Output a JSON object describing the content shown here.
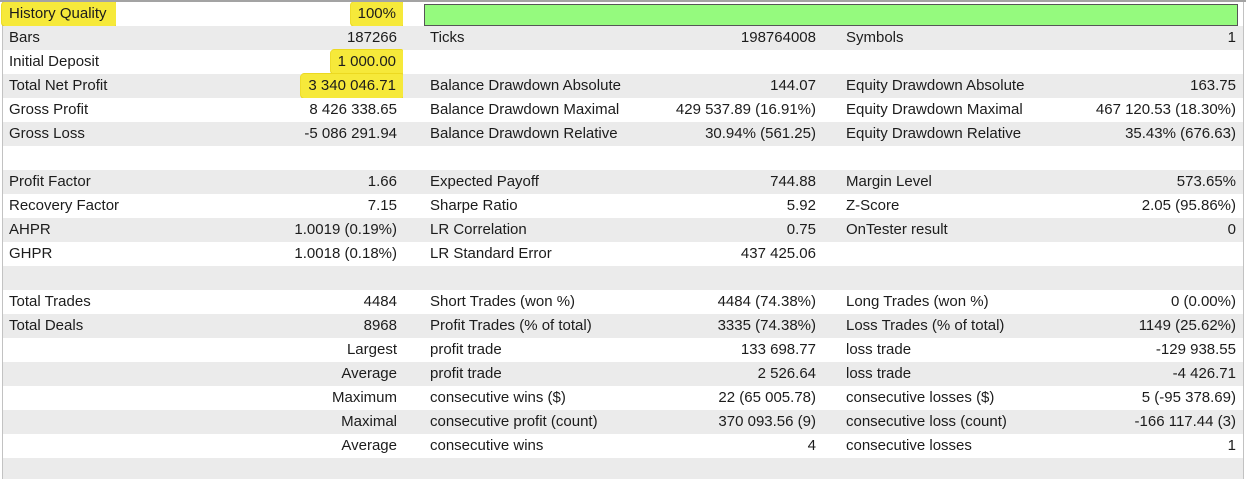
{
  "report": {
    "title": "Strategy Tester Backtest Report",
    "colors": {
      "row_shade": "#ebebeb",
      "highlight_yellow": "#f6e93a",
      "progress_fill": "#95fa7e",
      "progress_border": "#565656",
      "top_border": "#a3a3a3",
      "text": "#1c1c1c"
    },
    "progress": {
      "label": "History Quality",
      "value": "100%"
    },
    "rows": [
      {
        "c1l": "History Quality",
        "c1v": "100%",
        "hl": [
          "c1l",
          "c1v"
        ],
        "progress": true,
        "shade": false
      },
      {
        "c1l": "Bars",
        "c1v": "187266",
        "c2l": "Ticks",
        "c2v": "198764008",
        "c3l": "Symbols",
        "c3v": "1",
        "shade": true
      },
      {
        "c1l": "Initial Deposit",
        "c1v": "1 000.00",
        "hl": [
          "c1v"
        ],
        "shade": false
      },
      {
        "c1l": "Total Net Profit",
        "c1v": "3 340 046.71",
        "hl": [
          "c1v"
        ],
        "c2l": "Balance Drawdown Absolute",
        "c2v": "144.07",
        "c3l": "Equity Drawdown Absolute",
        "c3v": "163.75",
        "shade": true
      },
      {
        "c1l": "Gross Profit",
        "c1v": "8 426 338.65",
        "c2l": "Balance Drawdown Maximal",
        "c2v": "429 537.89 (16.91%)",
        "c3l": "Equity Drawdown Maximal",
        "c3v": "467 120.53 (18.30%)",
        "shade": false
      },
      {
        "c1l": "Gross Loss",
        "c1v": "-5 086 291.94",
        "c2l": "Balance Drawdown Relative",
        "c2v": "30.94% (561.25)",
        "c3l": "Equity Drawdown Relative",
        "c3v": "35.43% (676.63)",
        "shade": true
      },
      {
        "empty": true,
        "shade": false
      },
      {
        "c1l": "Profit Factor",
        "c1v": "1.66",
        "c2l": "Expected Payoff",
        "c2v": "744.88",
        "c3l": "Margin Level",
        "c3v": "573.65%",
        "shade": true
      },
      {
        "c1l": "Recovery Factor",
        "c1v": "7.15",
        "c2l": "Sharpe Ratio",
        "c2v": "5.92",
        "c3l": "Z-Score",
        "c3v": "2.05 (95.86%)",
        "shade": false
      },
      {
        "c1l": "AHPR",
        "c1v": "1.0019 (0.19%)",
        "c2l": "LR Correlation",
        "c2v": "0.75",
        "c3l": "OnTester result",
        "c3v": "0",
        "shade": true
      },
      {
        "c1l": "GHPR",
        "c1v": "1.0018 (0.18%)",
        "c2l": "LR Standard Error",
        "c2v": "437 425.06",
        "shade": false
      },
      {
        "empty": true,
        "shade": true
      },
      {
        "c1l": "Total Trades",
        "c1v": "4484",
        "c2l": "Short Trades (won %)",
        "c2v": "4484 (74.38%)",
        "c3l": "Long Trades (won %)",
        "c3v": "0 (0.00%)",
        "shade": false
      },
      {
        "c1l": "Total Deals",
        "c1v": "8968",
        "c2l": "Profit Trades (% of total)",
        "c2v": "3335 (74.38%)",
        "c3l": "Loss Trades (% of total)",
        "c3v": "1149 (25.62%)",
        "shade": true
      },
      {
        "c1v": "Largest",
        "c2l": "profit trade",
        "c2v": "133 698.77",
        "c3l": "loss trade",
        "c3v": "-129 938.55",
        "shade": false
      },
      {
        "c1v": "Average",
        "c2l": "profit trade",
        "c2v": "2 526.64",
        "c3l": "loss trade",
        "c3v": "-4 426.71",
        "shade": true
      },
      {
        "c1v": "Maximum",
        "c2l": "consecutive wins ($)",
        "c2v": "22 (65 005.78)",
        "c3l": "consecutive losses ($)",
        "c3v": "5 (-95 378.69)",
        "shade": false
      },
      {
        "c1v": "Maximal",
        "c2l": "consecutive profit (count)",
        "c2v": "370 093.56 (9)",
        "c3l": "consecutive loss (count)",
        "c3v": "-166 117.44 (3)",
        "shade": true
      },
      {
        "c1v": "Average",
        "c2l": "consecutive wins",
        "c2v": "4",
        "c3l": "consecutive losses",
        "c3v": "1",
        "shade": false
      },
      {
        "empty": true,
        "shade": true,
        "footer": true
      }
    ]
  }
}
